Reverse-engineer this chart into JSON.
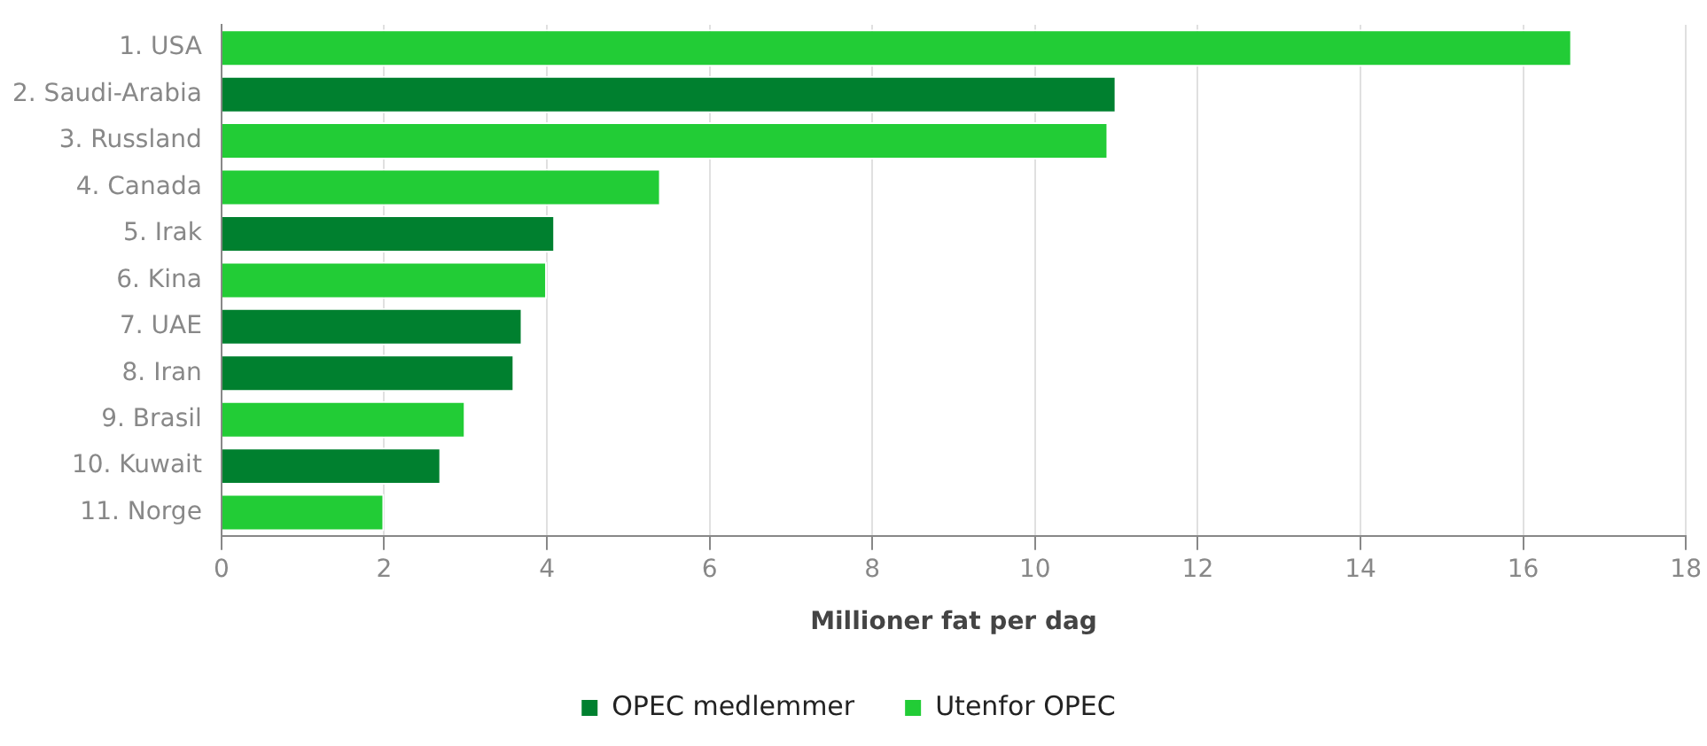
{
  "chart_data": {
    "type": "bar",
    "orientation": "horizontal",
    "categories": [
      "1. USA",
      "2. Saudi-Arabia",
      "3. Russland",
      "4. Canada",
      "5. Irak",
      "6. Kina",
      "7. UAE",
      "8. Iran",
      "9. Brasil",
      "10. Kuwait",
      "11. Norge"
    ],
    "series": [
      {
        "name": "OPEC medlemmer",
        "color": "#00802f",
        "values": [
          null,
          11.0,
          null,
          null,
          4.1,
          null,
          3.7,
          3.6,
          null,
          2.7,
          null
        ]
      },
      {
        "name": "Utenfor OPEC",
        "color": "#22cc36",
        "values": [
          16.6,
          null,
          10.9,
          5.4,
          null,
          4.0,
          null,
          null,
          3.0,
          null,
          2.0
        ]
      }
    ],
    "xlabel": "Millioner fat per dag",
    "xlim": [
      0,
      18
    ],
    "xticks": [
      0,
      2,
      4,
      6,
      8,
      10,
      12,
      14,
      16,
      18
    ],
    "grid": "x",
    "legend": "bottom"
  }
}
